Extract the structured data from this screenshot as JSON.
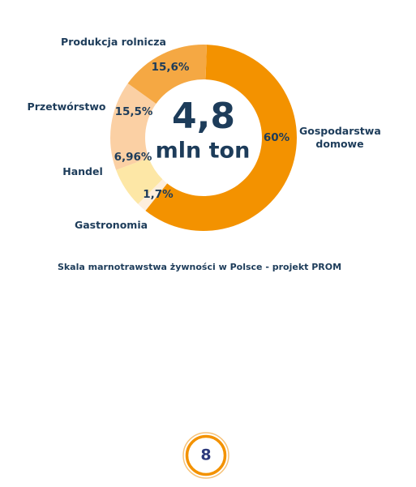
{
  "chart_data": {
    "type": "pie",
    "categories": [
      "Gospodarstwa domowe",
      "Gastronomia",
      "Handel",
      "Przetwórstwo",
      "Produkcja rolnicza"
    ],
    "values": [
      60,
      1.7,
      6.96,
      15.5,
      15.6
    ],
    "value_labels": [
      "60%",
      "1,7%",
      "6,96%",
      "15,5%",
      "15,6%"
    ],
    "colors": [
      "#f39200",
      "#fdeedd",
      "#fde7a6",
      "#fbd0a4",
      "#f5a843"
    ],
    "center_value": "4,8",
    "center_unit": "mln ton",
    "caption": "Skala marnotrawstwa żywności w Polsce - projekt PROM"
  },
  "page_number": "8"
}
